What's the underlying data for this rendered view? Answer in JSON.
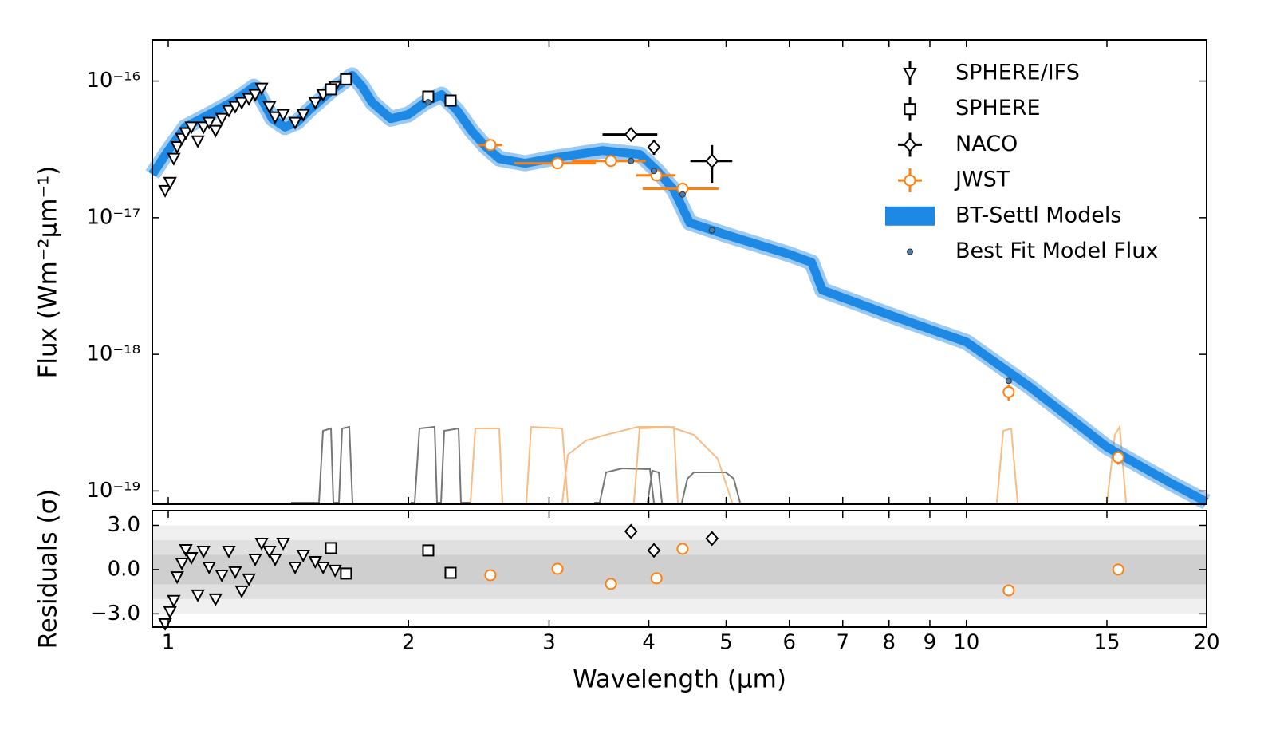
{
  "chart_data": {
    "type": "scatter",
    "xlabel": "Wavelength (μm)",
    "ylabel": "Flux (Wm⁻²μm⁻¹)",
    "residual_ylabel": "Residuals (σ)",
    "xscale": "log",
    "yscale": "log",
    "xlim": [
      0.955,
      20
    ],
    "xticks": [
      1,
      2,
      3,
      4,
      5,
      6,
      7,
      8,
      9,
      10,
      15,
      20
    ],
    "ylim": [
      8e-20,
      2e-16
    ],
    "yticks": [
      {
        "value": 1e-16,
        "label": "10⁻¹⁶"
      },
      {
        "value": 1e-17,
        "label": "10⁻¹⁷"
      },
      {
        "value": 1e-18,
        "label": "10⁻¹⁸"
      },
      {
        "value": 1e-19,
        "label": "10⁻¹⁹"
      }
    ],
    "residual_ylim": [
      -3.9,
      4.0
    ],
    "residual_yticks": [
      {
        "value": 3,
        "label": "3.0"
      },
      {
        "value": 0,
        "label": "0.0"
      },
      {
        "value": -3,
        "label": "−3.0"
      }
    ],
    "residual_bands": [
      3,
      2,
      1
    ],
    "residual_band_colors": [
      "#f0f0f0",
      "#e0e0e0",
      "#cfcfcf"
    ],
    "legend": "upper right",
    "series": [
      {
        "name": "SPHERE/IFS",
        "color": "#000000",
        "marker": "triangle_down",
        "x": [
          0.991,
          1.005,
          1.016,
          1.026,
          1.04,
          1.052,
          1.069,
          1.089,
          1.107,
          1.125,
          1.146,
          1.167,
          1.191,
          1.213,
          1.236,
          1.262,
          1.285,
          1.309,
          1.339,
          1.361,
          1.393,
          1.442,
          1.476,
          1.528,
          1.563,
          1.618
        ],
        "values": [
          1.58e-17,
          1.81e-17,
          2.71e-17,
          3.3e-17,
          3.79e-17,
          4.17e-17,
          4.6e-17,
          3.64e-17,
          4.6e-17,
          4.97e-17,
          4.34e-17,
          5.31e-17,
          6.08e-17,
          6.5e-17,
          6.95e-17,
          7.43e-17,
          7.95e-17,
          8.85e-17,
          6.5e-17,
          5.45e-17,
          5.68e-17,
          4.97e-17,
          5.68e-17,
          6.95e-17,
          7.95e-17,
          9.1e-17
        ],
        "residuals": [
          -3.68,
          -2.86,
          -2.1,
          -0.5,
          0.43,
          1.35,
          0.81,
          -1.73,
          1.24,
          0.16,
          -2.0,
          -0.38,
          1.24,
          -0.16,
          -1.46,
          -0.65,
          0.7,
          1.78,
          1.24,
          0.7,
          1.78,
          0.16,
          0.97,
          0.54,
          0.16,
          -0.05
        ]
      },
      {
        "name": "SPHERE",
        "color": "#000000",
        "marker": "square",
        "x": [
          1.599,
          1.67,
          2.117,
          2.258
        ],
        "values": [
          8.7e-17,
          1.03e-16,
          7.7e-17,
          7.2e-17
        ],
        "residuals": [
          1.46,
          -0.27,
          1.3,
          -0.22
        ]
      },
      {
        "name": "NACO",
        "color": "#000000",
        "marker": "diamond",
        "x": [
          3.8,
          4.06,
          4.8
        ],
        "values": [
          4.06e-17,
          3.28e-17,
          2.6e-17
        ],
        "xerr": [
          0.3,
          null,
          0.29
        ],
        "yerr": [
          null,
          4e-18,
          8e-18
        ],
        "residuals": [
          2.59,
          1.3,
          2.11
        ]
      },
      {
        "name": "JWST",
        "color": "#ff7f0e",
        "marker": "circle",
        "x": [
          2.533,
          3.074,
          3.586,
          4.09,
          4.41,
          11.3,
          15.5
        ],
        "values": [
          3.4e-17,
          2.5e-17,
          2.6e-17,
          2.04e-17,
          1.63e-17,
          5.3e-19,
          1.76e-19
        ],
        "xerr": [
          0.09,
          0.36,
          0.38,
          0.23,
          0.48,
          null,
          null
        ],
        "yerr": [
          null,
          null,
          null,
          null,
          null,
          7e-20,
          2e-20
        ],
        "residuals": [
          -0.38,
          0.05,
          -0.97,
          -0.59,
          1.41,
          -1.41,
          0.0
        ]
      },
      {
        "name": "BT-Settl Models",
        "color": "#1e88e5",
        "marker": "band",
        "x": [
          0.955,
          1.0,
          1.05,
          1.1,
          1.15,
          1.2,
          1.25,
          1.28,
          1.3,
          1.35,
          1.4,
          1.45,
          1.5,
          1.6,
          1.7,
          1.75,
          1.8,
          1.9,
          2.0,
          2.1,
          2.2,
          2.3,
          2.4,
          2.5,
          2.6,
          2.8,
          3.0,
          3.5,
          3.9,
          4.1,
          4.3,
          4.5,
          5.0,
          6.0,
          6.4,
          6.6,
          7.0,
          8.0,
          10.0,
          12.0,
          15.0,
          18.0,
          20.0
        ],
        "values": [
          2.07e-17,
          3.1e-17,
          4.6e-17,
          5.3e-17,
          6.1e-17,
          7e-17,
          8.2e-17,
          9.1e-17,
          7.95e-17,
          5.3e-17,
          4.6e-17,
          5e-17,
          6.1e-17,
          8.5e-17,
          1.1e-16,
          9.1e-17,
          7e-17,
          5.3e-17,
          5.7e-17,
          7e-17,
          7.95e-17,
          6.1e-17,
          4.3e-17,
          3.3e-17,
          2.7e-17,
          2.5e-17,
          2.7e-17,
          3.1e-17,
          2.9e-17,
          2.2e-17,
          1.6e-17,
          9.2e-18,
          7.5e-18,
          5.4e-18,
          4.7e-18,
          2.95e-18,
          2.6e-18,
          1.95e-18,
          1.23e-18,
          5.8e-19,
          2.1e-19,
          1.15e-19,
          8.3e-20
        ]
      },
      {
        "name": "Best Fit Model Flux",
        "color": "#4a7fb5",
        "marker": "dot",
        "x": [
          2.117,
          3.8,
          4.06,
          4.41,
          4.8,
          11.3
        ],
        "values": [
          7e-17,
          2.6e-17,
          2.2e-17,
          1.48e-17,
          8.1e-18,
          6.4e-19
        ]
      }
    ]
  }
}
